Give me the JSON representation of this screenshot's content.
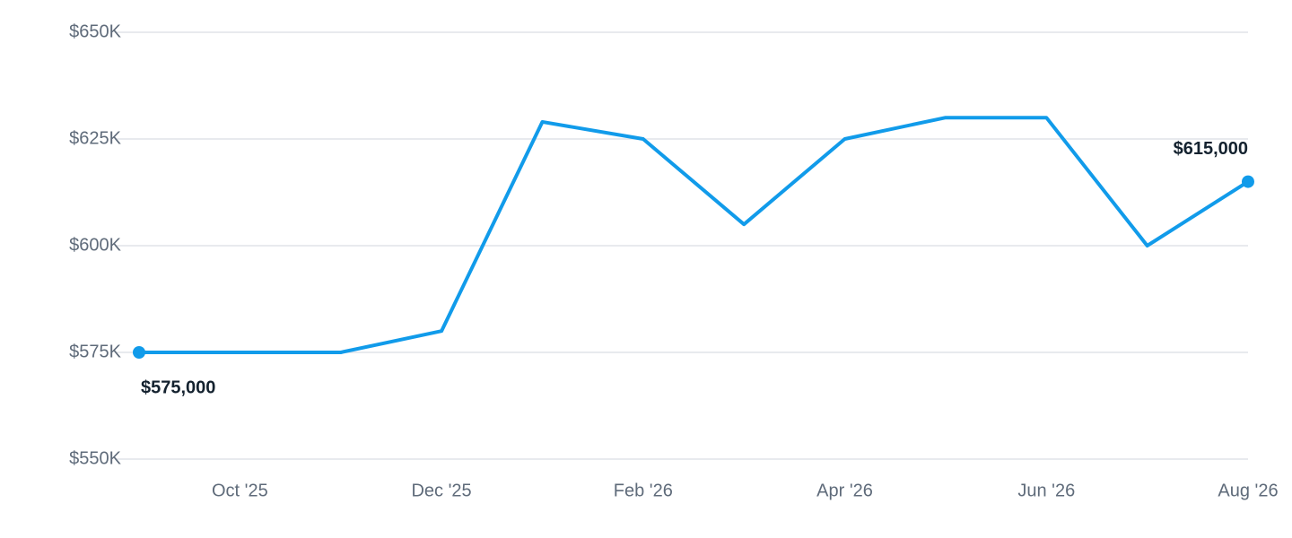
{
  "chart_data": {
    "type": "line",
    "categories": [
      null,
      "Oct '25",
      null,
      "Dec '25",
      null,
      "Feb '26",
      null,
      "Apr '26",
      null,
      "Jun '26",
      null,
      "Aug '26"
    ],
    "series": [
      {
        "color": "#119bea",
        "values": [
          575000,
          575000,
          575000,
          580000,
          629000,
          625000,
          605000,
          625000,
          630000,
          630000,
          600000,
          615000
        ],
        "value_labels": [
          "$575,000",
          null,
          null,
          null,
          null,
          null,
          null,
          null,
          null,
          null,
          null,
          "$615,000"
        ]
      }
    ],
    "ylim": [
      550000,
      650000
    ],
    "yticks": [
      {
        "value": 550000,
        "label": "$550K"
      },
      {
        "value": 575000,
        "label": "$575K"
      },
      {
        "value": 600000,
        "label": "$600K"
      },
      {
        "value": 625000,
        "label": "$625K"
      },
      {
        "value": 650000,
        "label": "$650K"
      }
    ],
    "grid": true
  }
}
